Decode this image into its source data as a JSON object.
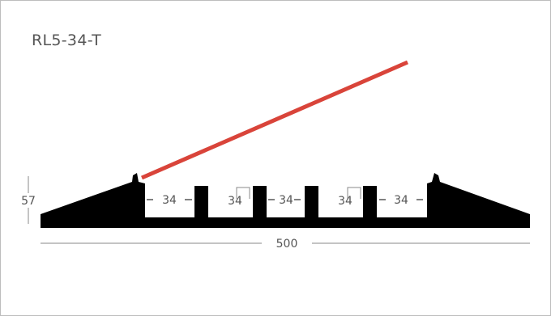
{
  "model": "RL5-34-T",
  "dimensions": {
    "height": "57",
    "total_width": "500",
    "channel_widths": [
      "34",
      "34",
      "34",
      "34",
      "34"
    ]
  },
  "colors": {
    "profile": "#000000",
    "lid_line": "#d9443a",
    "dimension_text": "#555555",
    "dimension_line": "#888888",
    "border": "#bdbdbd"
  }
}
